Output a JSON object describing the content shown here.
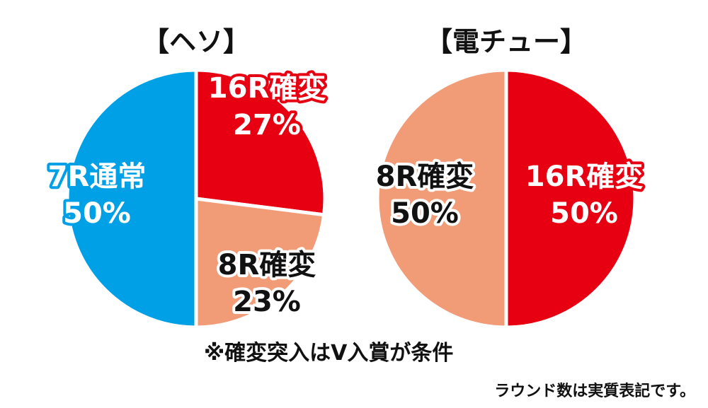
{
  "chart_data": [
    {
      "type": "pie",
      "title": "【ヘソ】",
      "slices": [
        {
          "label": "16R確変",
          "value": 27,
          "value_label": "27%",
          "color": "#e60012",
          "text_color": "#ffffff",
          "outline_color": "#e60012"
        },
        {
          "label": "8R確変",
          "value": 23,
          "value_label": "23%",
          "color": "#f19b77",
          "text_color": "#111111",
          "outline_color": "#ffffff"
        },
        {
          "label": "7R通常",
          "value": 50,
          "value_label": "50%",
          "color": "#00a0e6",
          "text_color": "#ffffff",
          "outline_color": "#00a0e6"
        }
      ]
    },
    {
      "type": "pie",
      "title": "【電チュー】",
      "slices": [
        {
          "label": "16R確変",
          "value": 50,
          "value_label": "50%",
          "color": "#e60012",
          "text_color": "#ffffff",
          "outline_color": "#e60012"
        },
        {
          "label": "8R確変",
          "value": 50,
          "value_label": "50%",
          "color": "#f19b77",
          "text_color": "#111111",
          "outline_color": "#ffffff"
        }
      ]
    }
  ],
  "notes": {
    "condition": "※確変突入はV入賞が条件",
    "footnote": "ラウンド数は実質表記です。"
  }
}
